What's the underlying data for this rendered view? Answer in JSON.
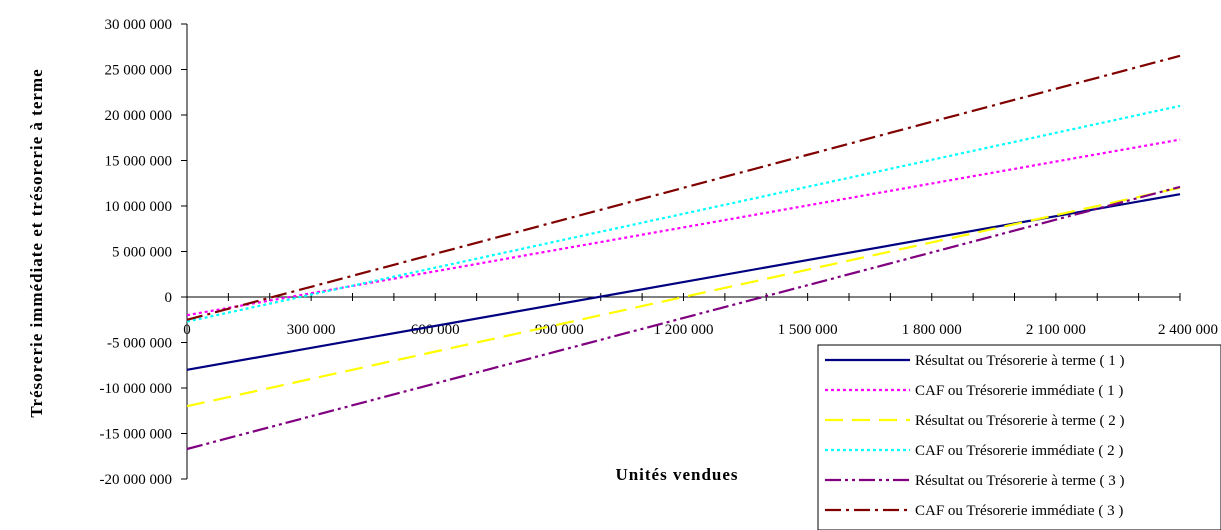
{
  "chart_data": {
    "type": "line",
    "title": "",
    "xlabel": "Unités vendues",
    "ylabel": "Trésorerie immédiate et trésorerie à terme",
    "xlim": [
      0,
      2400000
    ],
    "ylim": [
      -20000000,
      30000000
    ],
    "x_ticks": [
      0,
      300000,
      600000,
      900000,
      1200000,
      1500000,
      1800000,
      2100000,
      2400000
    ],
    "x_tick_labels": [
      "0",
      "300 000",
      "600 000",
      "900 000",
      "1 200 000",
      "1 500 000",
      "1 800 000",
      "2 100 000",
      "2 400 000"
    ],
    "y_ticks": [
      30000000,
      25000000,
      20000000,
      15000000,
      10000000,
      5000000,
      0,
      -5000000,
      -10000000,
      -15000000,
      -20000000
    ],
    "y_tick_labels": [
      "30 000 000",
      "25 000 000",
      "20 000 000",
      "15 000 000",
      "10 000 000",
      "5 000 000",
      "0",
      "-5 000 000",
      "-10 000 000",
      "-15 000 000",
      "-20 000 000"
    ],
    "legend_position": "bottom-right",
    "series": [
      {
        "name": "Résultat ou Trésorerie à terme ( 1 )",
        "color": "#000080",
        "dash": "solid",
        "x": [
          0,
          2400000
        ],
        "y": [
          -8000000,
          11300000
        ]
      },
      {
        "name": "CAF ou Trésorerie immédiate ( 1 )",
        "color": "#ff00ff",
        "dash": "dotted",
        "x": [
          0,
          2400000
        ],
        "y": [
          -2000000,
          17300000
        ]
      },
      {
        "name": "Résultat ou Trésorerie à terme ( 2 )",
        "color": "#ffff00",
        "dash": "dashed",
        "x": [
          0,
          2400000
        ],
        "y": [
          -12000000,
          12000000
        ]
      },
      {
        "name": "CAF ou Trésorerie immédiate ( 2 )",
        "color": "#00ffff",
        "dash": "dotted",
        "x": [
          0,
          2400000
        ],
        "y": [
          -2700000,
          21000000
        ]
      },
      {
        "name": "Résultat ou Trésorerie à terme ( 3 )",
        "color": "#800080",
        "dash": "dash-dot-dot",
        "x": [
          0,
          2400000
        ],
        "y": [
          -16700000,
          12100000
        ]
      },
      {
        "name": "CAF ou Trésorerie immédiate ( 3 )",
        "color": "#800000",
        "dash": "dash-dot",
        "x": [
          0,
          2400000
        ],
        "y": [
          -2500000,
          26500000
        ]
      }
    ]
  }
}
